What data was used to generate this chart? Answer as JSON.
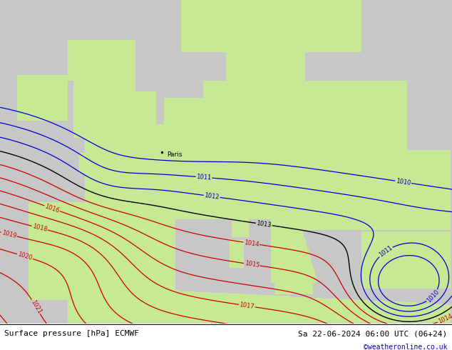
{
  "title_left": "Surface pressure [hPa] ECMWF",
  "title_right": "Sa 22-06-2024 06:00 UTC (06+24)",
  "credit": "©weatheronline.co.uk",
  "credit_color": "#0000cc",
  "bg_color": "#c8c8c8",
  "land_color": "#c8e896",
  "isobar_color_red": "#cc0000",
  "isobar_color_black": "#000000",
  "isobar_color_blue": "#0000cc",
  "paris_label": "Paris",
  "figsize": [
    6.34,
    4.9
  ],
  "dpi": 100
}
